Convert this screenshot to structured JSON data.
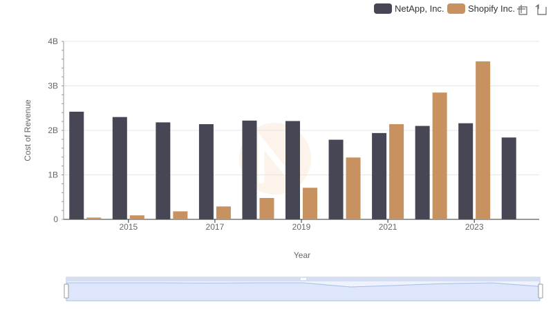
{
  "toolbar": {
    "zoom_icon": "crosshair-zoom-icon",
    "restore_icon": "restore-icon"
  },
  "colors": {
    "netapp": "#464655",
    "shopify": "#c89160",
    "grid": "#e6e6ef",
    "axis_text": "#666666",
    "zoom_fill": "#dde6fb",
    "zoom_stroke": "#a9bde8"
  },
  "chart_data": {
    "type": "bar",
    "xlabel": "Year",
    "ylabel": "Cost of Revenue",
    "x": [
      2014,
      2015,
      2016,
      2017,
      2018,
      2019,
      2020,
      2021,
      2022,
      2023,
      2024
    ],
    "x_tick_labels": [
      "2015",
      "2017",
      "2019",
      "2021",
      "2023"
    ],
    "ylim": [
      0,
      4000000000
    ],
    "y_tick_labels": [
      "0",
      "1B",
      "2B",
      "3B",
      "4B"
    ],
    "y_ticks": [
      0,
      1000000000,
      2000000000,
      3000000000,
      4000000000
    ],
    "grid": true,
    "legend_position": "top-right",
    "series": [
      {
        "name": "NetApp, Inc.",
        "values": [
          2420000000,
          2300000000,
          2180000000,
          2140000000,
          2220000000,
          2210000000,
          1790000000,
          1940000000,
          2100000000,
          2160000000,
          1840000000
        ]
      },
      {
        "name": "Shopify Inc.",
        "values": [
          40000000,
          90000000,
          180000000,
          290000000,
          480000000,
          710000000,
          1390000000,
          2140000000,
          2850000000,
          3550000000,
          null
        ]
      }
    ]
  }
}
